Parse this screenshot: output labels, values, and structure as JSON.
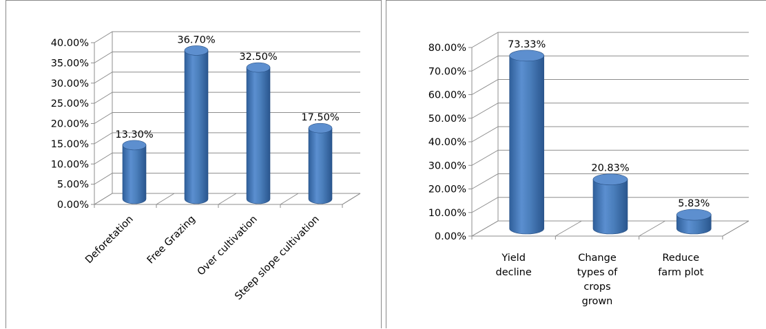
{
  "chart_data": [
    {
      "type": "bar",
      "style": "3d-cylinder",
      "title": "",
      "xlabel": "",
      "ylabel": "",
      "categories": [
        "Deforetation",
        "Free Grazing",
        "Over cultivation",
        "Steep slope cultivation"
      ],
      "values": [
        13.3,
        36.7,
        32.5,
        17.5
      ],
      "data_labels": [
        "13.30%",
        "36.70%",
        "32.50%",
        "17.50%"
      ],
      "ylim": [
        0,
        40
      ],
      "yticks": [
        "0.00%",
        "5.00%",
        "10.00%",
        "15.00%",
        "20.00%",
        "25.00%",
        "30.00%",
        "35.00%",
        "40.00%"
      ],
      "grid": true,
      "legend": "none",
      "color": "#4a7ebb"
    },
    {
      "type": "bar",
      "style": "3d-cylinder",
      "title": "",
      "xlabel": "",
      "ylabel": "",
      "categories": [
        "Yield decline",
        "Change types of crops grown",
        "Reduce farm plot"
      ],
      "category_lines": [
        [
          "Yield",
          "decline"
        ],
        [
          "Change",
          "types of",
          "crops",
          "grown"
        ],
        [
          "Reduce",
          "farm plot"
        ]
      ],
      "values": [
        73.33,
        20.83,
        5.83
      ],
      "data_labels": [
        "73.33%",
        "20.83%",
        "5.83%"
      ],
      "ylim": [
        0,
        80
      ],
      "yticks": [
        "0.00%",
        "10.00%",
        "20.00%",
        "30.00%",
        "40.00%",
        "50.00%",
        "60.00%",
        "70.00%",
        "80.00%"
      ],
      "grid": true,
      "legend": "none",
      "color": "#4a7ebb"
    }
  ]
}
